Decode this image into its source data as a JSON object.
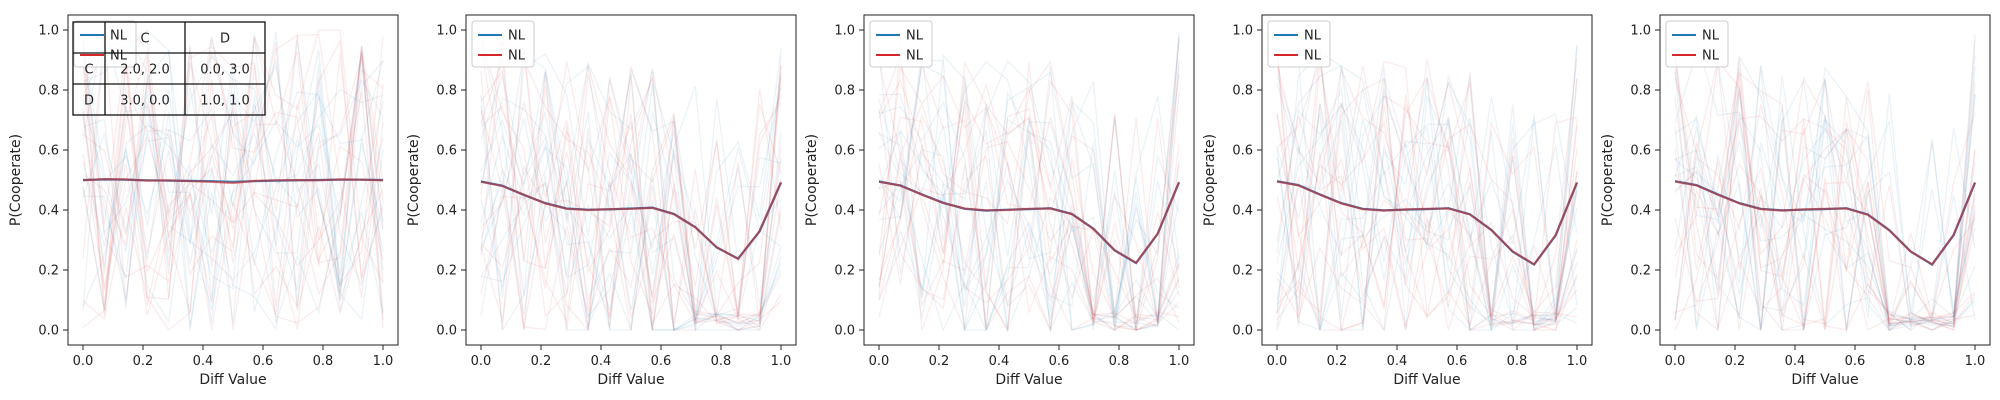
{
  "chart_data": [
    {
      "type": "line",
      "xlabel": "Diff Value",
      "ylabel": "P(Cooperate)",
      "xlim": [
        -0.05,
        1.05
      ],
      "ylim": [
        -0.05,
        1.05
      ],
      "xticks": [
        "0.0",
        "0.2",
        "0.4",
        "0.6",
        "0.8",
        "1.0"
      ],
      "yticks": [
        "0.0",
        "0.2",
        "0.4",
        "0.6",
        "0.8",
        "1.0"
      ],
      "grid": false,
      "legend": {
        "placement": "top-left",
        "entries": [
          {
            "label": "NL",
            "color": "#1f77b4"
          },
          {
            "label": "NL",
            "color": "#d62728"
          }
        ]
      },
      "payoff_table": {
        "headers": [
          "",
          "C",
          "D"
        ],
        "rows": [
          [
            "C",
            "2.0, 2.0",
            "0.0, 3.0"
          ],
          [
            "D",
            "3.0, 0.0",
            "1.0, 1.0"
          ]
        ]
      },
      "x": [
        0.0,
        0.0714,
        0.1429,
        0.2143,
        0.2857,
        0.3571,
        0.4286,
        0.5,
        0.5714,
        0.6429,
        0.7143,
        0.7857,
        0.8571,
        0.9286,
        1.0
      ],
      "series": [
        {
          "name": "NL",
          "color": "#1f77b4",
          "values": [
            0.5,
            0.502,
            0.501,
            0.499,
            0.498,
            0.497,
            0.496,
            0.494,
            0.496,
            0.498,
            0.499,
            0.5,
            0.501,
            0.501,
            0.5
          ]
        },
        {
          "name": "NL",
          "color": "#d62728",
          "values": [
            0.499,
            0.503,
            0.502,
            0.498,
            0.499,
            0.496,
            0.494,
            0.49,
            0.497,
            0.499,
            0.5,
            0.499,
            0.502,
            0.501,
            0.499
          ]
        }
      ]
    },
    {
      "type": "line",
      "xlabel": "Diff Value",
      "ylabel": "P(Cooperate)",
      "xlim": [
        -0.05,
        1.05
      ],
      "ylim": [
        -0.05,
        1.05
      ],
      "xticks": [
        "0.0",
        "0.2",
        "0.4",
        "0.6",
        "0.8",
        "1.0"
      ],
      "yticks": [
        "0.0",
        "0.2",
        "0.4",
        "0.6",
        "0.8",
        "1.0"
      ],
      "grid": false,
      "legend": {
        "placement": "top-left",
        "entries": [
          {
            "label": "NL",
            "color": "#1f77b4"
          },
          {
            "label": "NL",
            "color": "#d62728"
          }
        ]
      },
      "x": [
        0.0,
        0.0714,
        0.1429,
        0.2143,
        0.2857,
        0.3571,
        0.4286,
        0.5,
        0.5714,
        0.6429,
        0.7143,
        0.7857,
        0.8571,
        0.9286,
        1.0
      ],
      "series": [
        {
          "name": "NL",
          "color": "#1f77b4",
          "values": [
            0.495,
            0.481,
            0.45,
            0.423,
            0.405,
            0.401,
            0.402,
            0.405,
            0.408,
            0.387,
            0.343,
            0.275,
            0.238,
            0.329,
            0.491
          ]
        },
        {
          "name": "NL",
          "color": "#d62728",
          "values": [
            0.494,
            0.48,
            0.451,
            0.422,
            0.404,
            0.4,
            0.403,
            0.404,
            0.407,
            0.386,
            0.342,
            0.276,
            0.237,
            0.33,
            0.493
          ]
        }
      ]
    },
    {
      "type": "line",
      "xlabel": "Diff Value",
      "ylabel": "P(Cooperate)",
      "xlim": [
        -0.05,
        1.05
      ],
      "ylim": [
        -0.05,
        1.05
      ],
      "xticks": [
        "0.0",
        "0.2",
        "0.4",
        "0.6",
        "0.8",
        "1.0"
      ],
      "yticks": [
        "0.0",
        "0.2",
        "0.4",
        "0.6",
        "0.8",
        "1.0"
      ],
      "grid": false,
      "legend": {
        "placement": "top-left",
        "entries": [
          {
            "label": "NL",
            "color": "#1f77b4"
          },
          {
            "label": "NL",
            "color": "#d62728"
          }
        ]
      },
      "x": [
        0.0,
        0.0714,
        0.1429,
        0.2143,
        0.2857,
        0.3571,
        0.4286,
        0.5,
        0.5714,
        0.6429,
        0.7143,
        0.7857,
        0.8571,
        0.9286,
        1.0
      ],
      "series": [
        {
          "name": "NL",
          "color": "#1f77b4",
          "values": [
            0.495,
            0.482,
            0.452,
            0.424,
            0.404,
            0.398,
            0.401,
            0.403,
            0.406,
            0.387,
            0.338,
            0.265,
            0.223,
            0.32,
            0.492
          ]
        },
        {
          "name": "NL",
          "color": "#d62728",
          "values": [
            0.494,
            0.481,
            0.451,
            0.423,
            0.405,
            0.399,
            0.4,
            0.404,
            0.405,
            0.386,
            0.337,
            0.266,
            0.224,
            0.321,
            0.493
          ]
        }
      ]
    },
    {
      "type": "line",
      "xlabel": "Diff Value",
      "ylabel": "P(Cooperate)",
      "xlim": [
        -0.05,
        1.05
      ],
      "ylim": [
        -0.05,
        1.05
      ],
      "xticks": [
        "0.0",
        "0.2",
        "0.4",
        "0.6",
        "0.8",
        "1.0"
      ],
      "yticks": [
        "0.0",
        "0.2",
        "0.4",
        "0.6",
        "0.8",
        "1.0"
      ],
      "grid": false,
      "legend": {
        "placement": "top-left",
        "entries": [
          {
            "label": "NL",
            "color": "#1f77b4"
          },
          {
            "label": "NL",
            "color": "#d62728"
          }
        ]
      },
      "x": [
        0.0,
        0.0714,
        0.1429,
        0.2143,
        0.2857,
        0.3571,
        0.4286,
        0.5,
        0.5714,
        0.6429,
        0.7143,
        0.7857,
        0.8571,
        0.9286,
        1.0
      ],
      "series": [
        {
          "name": "NL",
          "color": "#1f77b4",
          "values": [
            0.496,
            0.483,
            0.452,
            0.423,
            0.404,
            0.399,
            0.401,
            0.403,
            0.406,
            0.386,
            0.334,
            0.261,
            0.218,
            0.315,
            0.491
          ]
        },
        {
          "name": "NL",
          "color": "#d62728",
          "values": [
            0.495,
            0.482,
            0.451,
            0.422,
            0.403,
            0.398,
            0.402,
            0.404,
            0.405,
            0.385,
            0.333,
            0.262,
            0.219,
            0.316,
            0.492
          ]
        }
      ]
    },
    {
      "type": "line",
      "xlabel": "Diff Value",
      "ylabel": "P(Cooperate)",
      "xlim": [
        -0.05,
        1.05
      ],
      "ylim": [
        -0.05,
        1.05
      ],
      "xticks": [
        "0.0",
        "0.2",
        "0.4",
        "0.6",
        "0.8",
        "1.0"
      ],
      "yticks": [
        "0.0",
        "0.2",
        "0.4",
        "0.6",
        "0.8",
        "1.0"
      ],
      "grid": false,
      "legend": {
        "placement": "top-left",
        "entries": [
          {
            "label": "NL",
            "color": "#1f77b4"
          },
          {
            "label": "NL",
            "color": "#d62728"
          }
        ]
      },
      "x": [
        0.0,
        0.0714,
        0.1429,
        0.2143,
        0.2857,
        0.3571,
        0.4286,
        0.5,
        0.5714,
        0.6429,
        0.7143,
        0.7857,
        0.8571,
        0.9286,
        1.0
      ],
      "series": [
        {
          "name": "NL",
          "color": "#1f77b4",
          "values": [
            0.496,
            0.483,
            0.452,
            0.423,
            0.404,
            0.399,
            0.401,
            0.403,
            0.406,
            0.385,
            0.333,
            0.262,
            0.218,
            0.316,
            0.491
          ]
        },
        {
          "name": "NL",
          "color": "#d62728",
          "values": [
            0.495,
            0.482,
            0.451,
            0.422,
            0.403,
            0.398,
            0.402,
            0.404,
            0.405,
            0.384,
            0.332,
            0.261,
            0.219,
            0.317,
            0.492
          ]
        }
      ]
    }
  ]
}
